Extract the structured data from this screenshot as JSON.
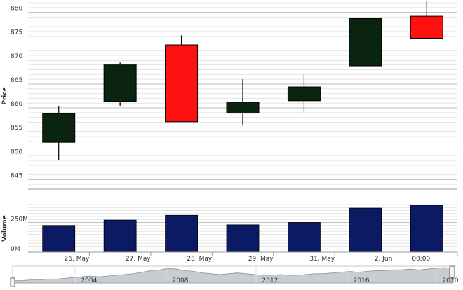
{
  "chart_data": [
    {
      "type": "candlestick",
      "ylabel": "Price",
      "ylim": [
        843,
        882
      ],
      "y_ticks": [
        845,
        850,
        855,
        860,
        865,
        870,
        875,
        880
      ],
      "grid": true,
      "categories": [
        "26. May",
        "27. May",
        "28. May",
        "29. May",
        "31. May",
        "2. Jun",
        "00:00"
      ],
      "candles": [
        {
          "open": 852.8,
          "high": 860.4,
          "low": 849.0,
          "close": 858.8,
          "direction": "up"
        },
        {
          "open": 861.4,
          "high": 869.5,
          "low": 860.3,
          "close": 869.0,
          "direction": "up"
        },
        {
          "open": 873.2,
          "high": 875.2,
          "low": 857.1,
          "close": 857.1,
          "direction": "down"
        },
        {
          "open": 858.9,
          "high": 866.0,
          "low": 856.3,
          "close": 861.2,
          "direction": "up"
        },
        {
          "open": 861.5,
          "high": 867.0,
          "low": 859.1,
          "close": 864.4,
          "direction": "up"
        },
        {
          "open": 868.8,
          "high": 878.7,
          "low": 868.8,
          "close": 878.7,
          "direction": "up"
        },
        {
          "open": 879.2,
          "high": 882.4,
          "low": 874.6,
          "close": 874.6,
          "direction": "down"
        }
      ],
      "colors": {
        "up": "#0b2410",
        "down": "#ff1111",
        "grid": "#d9d9d9",
        "wick": "#000000"
      }
    },
    {
      "type": "bar",
      "ylabel": "Volume",
      "y_ticks": [
        0,
        250
      ],
      "y_tick_labels": [
        "0M",
        "250M"
      ],
      "ylim": [
        0,
        400
      ],
      "unit": "M",
      "categories": [
        "26. May",
        "27. May",
        "28. May",
        "29. May",
        "31. May",
        "2. Jun",
        "00:00"
      ],
      "values": [
        225,
        270,
        310,
        230,
        250,
        370,
        395
      ],
      "colors": {
        "bar": "#0c1a63"
      }
    },
    {
      "type": "area",
      "role": "navigator",
      "x_tick_labels": [
        "2004",
        "2008",
        "2012",
        "2016",
        "2020"
      ],
      "values": [
        3,
        3,
        4,
        4,
        5,
        5,
        6,
        7,
        8,
        9,
        8,
        9,
        10,
        11,
        12,
        14,
        16,
        17,
        19,
        18,
        16,
        15,
        13,
        12,
        11,
        12,
        13,
        12,
        11,
        10,
        10,
        11,
        10,
        10,
        11,
        12,
        12,
        13,
        14,
        15,
        14,
        15,
        16,
        16,
        17,
        17,
        18,
        17,
        18,
        19,
        20,
        19
      ],
      "colors": {
        "fill": "#c8cdd3",
        "line": "#8a939c"
      }
    }
  ]
}
